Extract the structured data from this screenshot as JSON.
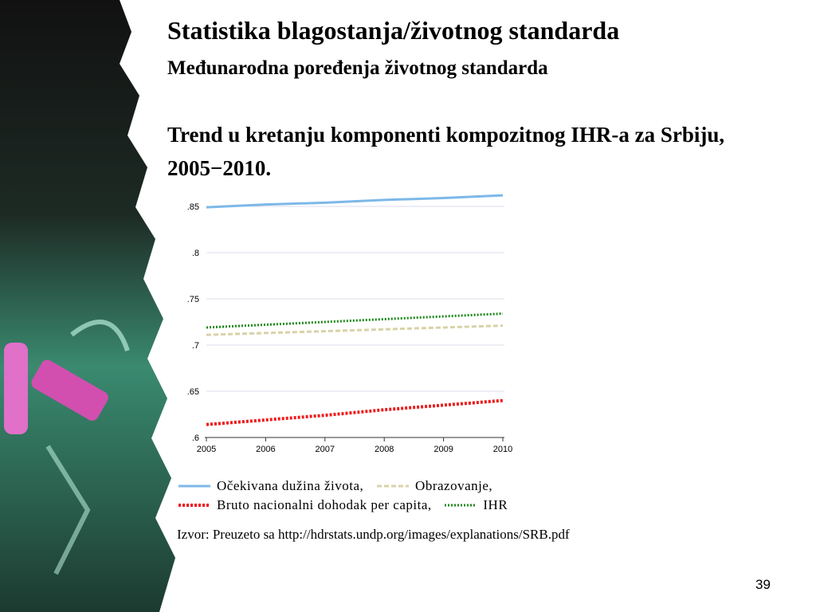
{
  "slide": {
    "title": "Statistika blagostanja/životnog standarda",
    "subtitle": "Međunarodna poređenja životnog standarda",
    "page_number": "39"
  },
  "chart_data": {
    "type": "line",
    "title": "Trend u kretanju komponenti kompozitnog IHR-a za Srbiju, 2005−2010.",
    "x": [
      2005,
      2006,
      2007,
      2008,
      2009,
      2010
    ],
    "xlim": [
      2005,
      2010
    ],
    "xticks": [
      2005,
      2006,
      2007,
      2008,
      2009,
      2010
    ],
    "ylim": [
      0.6,
      0.865
    ],
    "yticks": [
      {
        "value": 0.6,
        "label": ".6"
      },
      {
        "value": 0.65,
        "label": ".65"
      },
      {
        "value": 0.7,
        "label": ".7"
      },
      {
        "value": 0.75,
        "label": ".75"
      },
      {
        "value": 0.8,
        "label": ".8"
      },
      {
        "value": 0.85,
        "label": ".85"
      }
    ],
    "grid": true,
    "series": [
      {
        "name": "Očekivana dužina života,",
        "color": "#7db8e8",
        "values": [
          0.849,
          0.852,
          0.854,
          0.857,
          0.859,
          0.862
        ]
      },
      {
        "name": "Obrazovanje,",
        "color": "#d8d2a8",
        "values": [
          0.711,
          0.713,
          0.715,
          0.717,
          0.719,
          0.721
        ]
      },
      {
        "name": "Bruto nacionalni dohodak per capita,",
        "color": "#ee1c1c",
        "values": [
          0.614,
          0.619,
          0.624,
          0.63,
          0.635,
          0.64
        ]
      },
      {
        "name": "IHR",
        "color": "#1a8a1a",
        "values": [
          0.719,
          0.722,
          0.725,
          0.728,
          0.731,
          0.734
        ]
      }
    ],
    "source": "Izvor: Preuzeto sa http://hdrstats.undp.org/images/explanations/SRB.pdf"
  }
}
